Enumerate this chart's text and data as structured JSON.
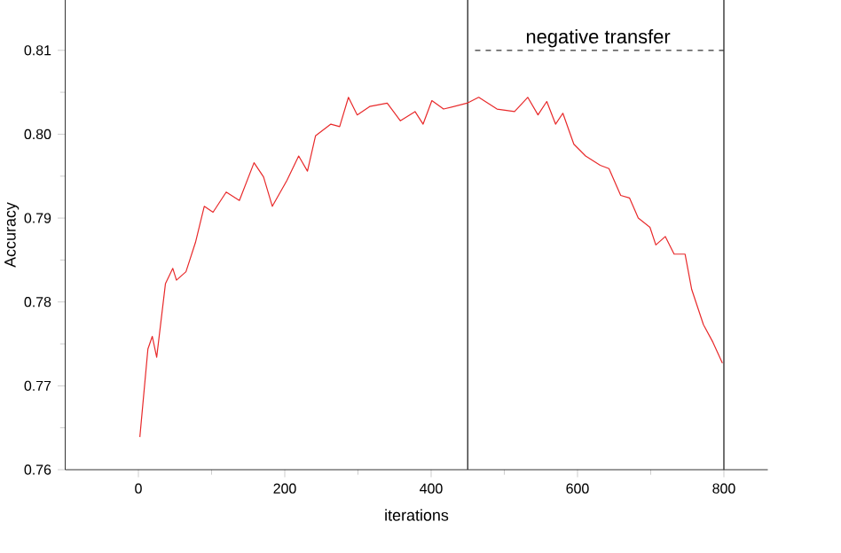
{
  "chart_data": {
    "type": "line",
    "xlabel": "iterations",
    "ylabel": "Accuracy",
    "xlim": [
      -100,
      860
    ],
    "ylim": [
      0.76,
      0.816
    ],
    "xticks": [
      0,
      200,
      400,
      600,
      800
    ],
    "yticks": [
      0.76,
      0.77,
      0.78,
      0.79,
      {
        "value": 0.8,
        "label": "0.80"
      },
      0.81
    ],
    "grid": false,
    "marker": "none",
    "series": [
      {
        "color": "#e8292a",
        "line_style": "solid",
        "x": [
          2,
          13,
          19,
          25,
          37,
          47,
          52,
          65,
          78,
          90,
          102,
          120,
          138,
          158,
          171,
          183,
          203,
          219,
          231,
          242,
          263,
          275,
          287,
          299,
          316,
          340,
          358,
          378,
          389,
          401,
          417,
          449,
          465,
          490,
          514,
          532,
          546,
          558,
          570,
          580,
          595,
          611,
          631,
          643,
          659,
          671,
          683,
          699,
          707,
          720,
          732,
          747,
          756,
          772,
          785,
          798
        ],
        "values": [
          0.7639,
          0.7744,
          0.7759,
          0.7734,
          0.7822,
          0.784,
          0.7826,
          0.7836,
          0.7871,
          0.7914,
          0.7907,
          0.7931,
          0.7921,
          0.7966,
          0.7949,
          0.7914,
          0.7945,
          0.7974,
          0.7956,
          0.7998,
          0.8012,
          0.8009,
          0.8044,
          0.8023,
          0.8033,
          0.8037,
          0.8016,
          0.8027,
          0.8012,
          0.804,
          0.803,
          0.8037,
          0.8044,
          0.803,
          0.8027,
          0.8044,
          0.8023,
          0.8039,
          0.8012,
          0.8025,
          0.7988,
          0.7974,
          0.7963,
          0.7959,
          0.7927,
          0.7924,
          0.79,
          0.7889,
          0.7868,
          0.7878,
          0.7857,
          0.7857,
          0.7815,
          0.7773,
          0.7752,
          0.7727
        ]
      },
      {
        "color": "#333333",
        "line_style": "dashed",
        "x": [
          460,
          800
        ],
        "values": [
          0.81,
          0.81
        ]
      }
    ],
    "ref_lines": [
      {
        "axis": "x",
        "value": 450,
        "color": "#333333"
      },
      {
        "axis": "x",
        "value": 800,
        "color": "#333333"
      }
    ],
    "annotations": [
      {
        "text": "negative transfer",
        "x": 628,
        "y": 0.81
      }
    ]
  }
}
